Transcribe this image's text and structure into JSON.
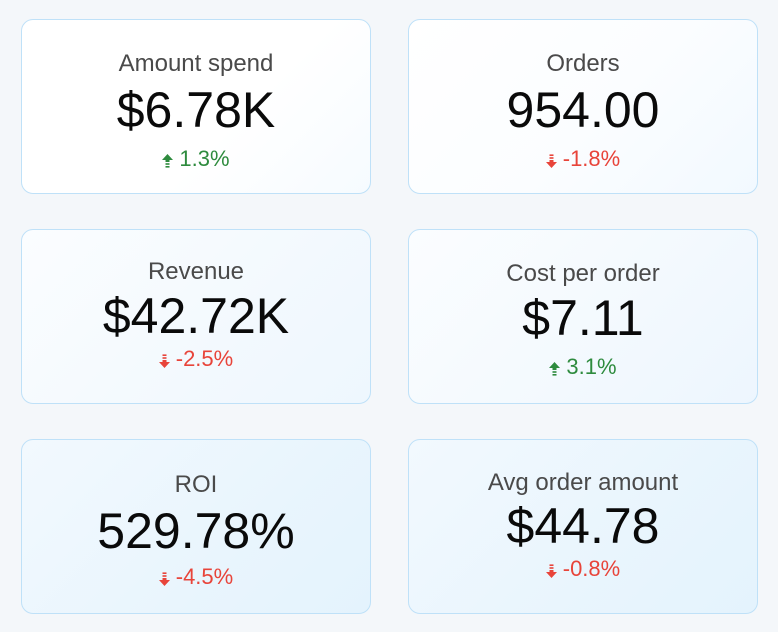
{
  "colors": {
    "positive": "#2e8b3e",
    "negative": "#e8443a",
    "card_border": "#bfe1f8",
    "background": "#f4f7fa"
  },
  "metrics": [
    {
      "label": "Amount spend",
      "value": "$6.78K",
      "delta": "1.3%",
      "direction": "up",
      "icon": "arrow-up-icon"
    },
    {
      "label": "Orders",
      "value": "954.00",
      "delta": "-1.8%",
      "direction": "down",
      "icon": "arrow-down-icon"
    },
    {
      "label": "Revenue",
      "value": "$42.72K",
      "delta": "-2.5%",
      "direction": "down",
      "icon": "arrow-down-icon"
    },
    {
      "label": "Cost per order",
      "value": "$7.11",
      "delta": "3.1%",
      "direction": "up",
      "icon": "arrow-up-icon"
    },
    {
      "label": "ROI",
      "value": "529.78%",
      "delta": "-4.5%",
      "direction": "down",
      "icon": "arrow-down-icon"
    },
    {
      "label": "Avg order amount",
      "value": "$44.78",
      "delta": "-0.8%",
      "direction": "down",
      "icon": "arrow-down-icon"
    }
  ]
}
